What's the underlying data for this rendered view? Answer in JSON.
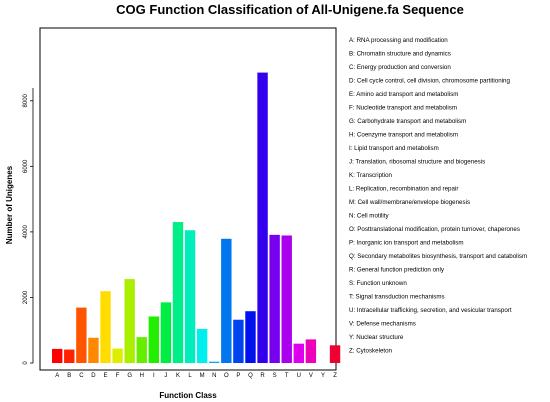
{
  "chart_data": {
    "type": "bar",
    "title": "COG Function Classification of All-Unigene.fa Sequence",
    "xlabel": "Function Class",
    "ylabel": "Number of Unigenes",
    "ylim": [
      0,
      9000
    ],
    "yticks": [
      0,
      2000,
      4000,
      6000,
      8000
    ],
    "grid": false,
    "legend_position": "right",
    "categories": [
      "A",
      "B",
      "C",
      "D",
      "E",
      "F",
      "G",
      "H",
      "I",
      "J",
      "K",
      "L",
      "M",
      "N",
      "O",
      "P",
      "Q",
      "R",
      "S",
      "T",
      "U",
      "V",
      "Y",
      "Z"
    ],
    "values": [
      430,
      410,
      1690,
      770,
      2190,
      440,
      2560,
      790,
      1420,
      1850,
      4300,
      4050,
      1040,
      40,
      3790,
      1320,
      1580,
      8860,
      3910,
      3890,
      590,
      720,
      0,
      540
    ],
    "colors": [
      "#ff0000",
      "#ff2200",
      "#ff5500",
      "#ff8800",
      "#ffdd00",
      "#ddee00",
      "#aaee00",
      "#66ee00",
      "#22ee00",
      "#00ee44",
      "#00ee88",
      "#00eebb",
      "#00eeee",
      "#00aaee",
      "#0077ee",
      "#0044ee",
      "#0011ee",
      "#3300ee",
      "#7700ee",
      "#aa00ee",
      "#dd00ee",
      "#ee00bb",
      "#ee0077",
      "#ee0033"
    ],
    "legend": [
      "A: RNA processing and modification",
      "B: Chromatin structure and dynamics",
      "C: Energy production and conversion",
      "D: Cell cycle control, cell division, chromosome partitioning",
      "E: Amino acid transport and metabolism",
      "F: Nucleotide transport and metabolism",
      "G: Carbohydrate transport and metabolism",
      "H: Coenzyme transport and metabolism",
      "I: Lipid transport and metabolism",
      "J: Translation, ribosomal structure and biogenesis",
      "K: Transcription",
      "L: Replication, recombination and repair",
      "M: Cell wall/membrane/envelope biogenesis",
      "N: Cell motility",
      "O: Posttranslational modification, protein turnover, chaperones",
      "P: Inorganic ion transport and metabolism",
      "Q: Secondary metabolites biosynthesis, transport and catabolism",
      "R: General function prediction only",
      "S: Function unknown",
      "T: Signal transduction mechanisms",
      "U: Intracellular trafficking, secretion, and vesicular transport",
      "V: Defense mechanisms",
      "Y: Nuclear structure",
      "Z: Cytoskeleton"
    ]
  }
}
